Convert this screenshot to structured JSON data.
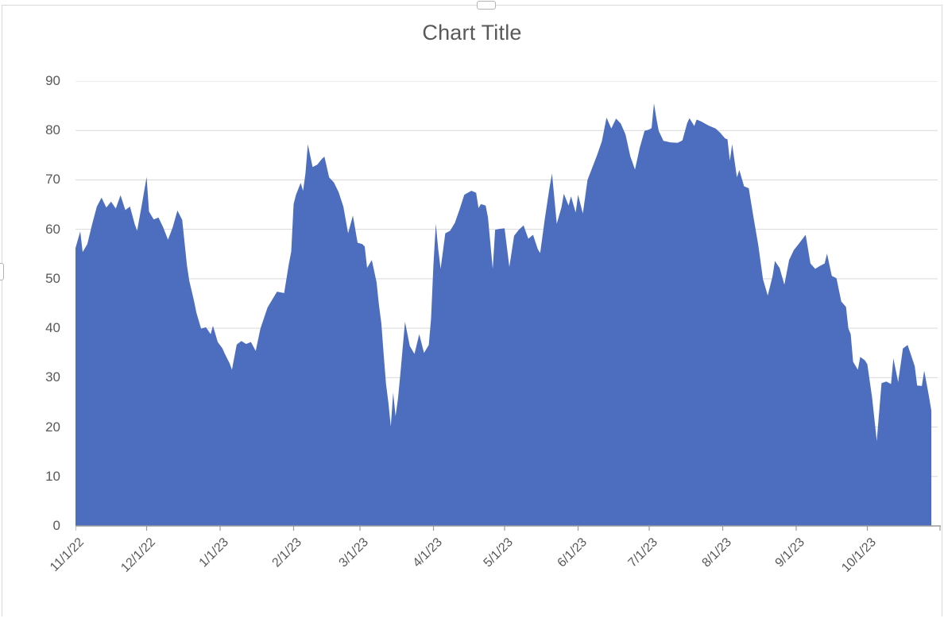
{
  "chart_frame": {
    "background": "#FFFFFF",
    "border_color": "#D9D9D9"
  },
  "chart_data": {
    "type": "area",
    "title": "Chart Title",
    "legend": "none",
    "grid": "horizontal",
    "series_color": "#4D6EBF",
    "grid_color": "#D9D9D9",
    "axis_line_color": "#9B9B9B",
    "text_color": "#595959",
    "ylim": [
      0,
      90
    ],
    "y_ticks": [
      90,
      80,
      70,
      60,
      50,
      40,
      30,
      20,
      10,
      0
    ],
    "x_axis": {
      "labels": [
        "11/1/22",
        "12/1/22",
        "1/1/23",
        "2/1/23",
        "3/1/23",
        "4/1/23",
        "5/1/23",
        "6/1/23",
        "7/1/23",
        "8/1/23",
        "9/1/23",
        "10/1/23"
      ],
      "tick_days": [
        0,
        30,
        61,
        92,
        120,
        151,
        181,
        212,
        242,
        273,
        304,
        334
      ],
      "end_tick_day": 365,
      "domain_days": [
        0,
        365
      ]
    },
    "points_day_value": [
      [
        0,
        56.2
      ],
      [
        2,
        59.6
      ],
      [
        3,
        55.4
      ],
      [
        5,
        57
      ],
      [
        7,
        61
      ],
      [
        9,
        64.6
      ],
      [
        11,
        66.4
      ],
      [
        13,
        64.4
      ],
      [
        15,
        65.6
      ],
      [
        17,
        64.2
      ],
      [
        19,
        66.9
      ],
      [
        21,
        63.9
      ],
      [
        23,
        64.6
      ],
      [
        25,
        61
      ],
      [
        26,
        59.7
      ],
      [
        28,
        65
      ],
      [
        30,
        70.6
      ],
      [
        31,
        63.6
      ],
      [
        33,
        62
      ],
      [
        35,
        62.4
      ],
      [
        37,
        60.4
      ],
      [
        39,
        57.9
      ],
      [
        41,
        60.4
      ],
      [
        43,
        63.8
      ],
      [
        45,
        61.9
      ],
      [
        47,
        52.8
      ],
      [
        48,
        49.6
      ],
      [
        50,
        45.5
      ],
      [
        51,
        43.1
      ],
      [
        53,
        39.9
      ],
      [
        55,
        40.2
      ],
      [
        57,
        38.8
      ],
      [
        58,
        40.5
      ],
      [
        60,
        37.2
      ],
      [
        62,
        35.9
      ],
      [
        63,
        34.8
      ],
      [
        65,
        32.9
      ],
      [
        66,
        31.6
      ],
      [
        68,
        36.7
      ],
      [
        70,
        37.4
      ],
      [
        72,
        36.8
      ],
      [
        74,
        37.2
      ],
      [
        76,
        35.4
      ],
      [
        78,
        39.9
      ],
      [
        81,
        44.2
      ],
      [
        85,
        47.4
      ],
      [
        88,
        47.1
      ],
      [
        89,
        50
      ],
      [
        90,
        53
      ],
      [
        91,
        55.5
      ],
      [
        92,
        65.1
      ],
      [
        93,
        67
      ],
      [
        95,
        69.4
      ],
      [
        96,
        67.8
      ],
      [
        97,
        71.3
      ],
      [
        98,
        77.2
      ],
      [
        100,
        72.6
      ],
      [
        102,
        73.1
      ],
      [
        104,
        74.3
      ],
      [
        105,
        74.7
      ],
      [
        107,
        70.5
      ],
      [
        109,
        69.5
      ],
      [
        111,
        67.5
      ],
      [
        113,
        64.6
      ],
      [
        115,
        59.2
      ],
      [
        117,
        62.8
      ],
      [
        119,
        57.3
      ],
      [
        121,
        57
      ],
      [
        122,
        56.5
      ],
      [
        123,
        52.2
      ],
      [
        125,
        53.8
      ],
      [
        127,
        49.3
      ],
      [
        128,
        44.7
      ],
      [
        129,
        41
      ],
      [
        130,
        34.6
      ],
      [
        131,
        28.7
      ],
      [
        132,
        24.9
      ],
      [
        133,
        20.1
      ],
      [
        134,
        27
      ],
      [
        135,
        22.2
      ],
      [
        136,
        25.7
      ],
      [
        137,
        30.5
      ],
      [
        139,
        41.3
      ],
      [
        141,
        36.4
      ],
      [
        143,
        34.8
      ],
      [
        145,
        38.8
      ],
      [
        147,
        35
      ],
      [
        149,
        36.6
      ],
      [
        150,
        42
      ],
      [
        151,
        53
      ],
      [
        152,
        61.1
      ],
      [
        153,
        56
      ],
      [
        154,
        52
      ],
      [
        156,
        59.2
      ],
      [
        158,
        59.7
      ],
      [
        160,
        61.3
      ],
      [
        162,
        64
      ],
      [
        164,
        67
      ],
      [
        167,
        67.8
      ],
      [
        169,
        67.4
      ],
      [
        170,
        64.3
      ],
      [
        171,
        65.1
      ],
      [
        173,
        64.8
      ],
      [
        174,
        62.4
      ],
      [
        176,
        52
      ],
      [
        177,
        59.9
      ],
      [
        179,
        60.1
      ],
      [
        181,
        60.2
      ],
      [
        183,
        52.4
      ],
      [
        185,
        58.7
      ],
      [
        187,
        59.9
      ],
      [
        189,
        60.8
      ],
      [
        191,
        58.1
      ],
      [
        193,
        58.9
      ],
      [
        195,
        56
      ],
      [
        196,
        55.2
      ],
      [
        198,
        62.2
      ],
      [
        200,
        68.6
      ],
      [
        201,
        71.3
      ],
      [
        203,
        61.1
      ],
      [
        205,
        64.5
      ],
      [
        206,
        67.2
      ],
      [
        208,
        64.8
      ],
      [
        209,
        66.7
      ],
      [
        211,
        63.4
      ],
      [
        212,
        67
      ],
      [
        214,
        63.2
      ],
      [
        216,
        70
      ],
      [
        218,
        72.5
      ],
      [
        220,
        75
      ],
      [
        222,
        77.8
      ],
      [
        224,
        82.6
      ],
      [
        226,
        80.4
      ],
      [
        228,
        82.4
      ],
      [
        230,
        81.4
      ],
      [
        232,
        79.2
      ],
      [
        234,
        74.8
      ],
      [
        236,
        72.1
      ],
      [
        238,
        76.5
      ],
      [
        240,
        79.9
      ],
      [
        242,
        80.2
      ],
      [
        243,
        80.5
      ],
      [
        244,
        85.5
      ],
      [
        245,
        82.5
      ],
      [
        246,
        79.9
      ],
      [
        248,
        77.9
      ],
      [
        251,
        77.6
      ],
      [
        254,
        77.5
      ],
      [
        256,
        78
      ],
      [
        258,
        81.5
      ],
      [
        259,
        82.5
      ],
      [
        261,
        80.9
      ],
      [
        262,
        82.2
      ],
      [
        264,
        81.8
      ],
      [
        267,
        81
      ],
      [
        270,
        80.4
      ],
      [
        272,
        79.5
      ],
      [
        274,
        78.4
      ],
      [
        275,
        78.2
      ],
      [
        276,
        73.9
      ],
      [
        277,
        77.2
      ],
      [
        279,
        70.5
      ],
      [
        280,
        72
      ],
      [
        282,
        68.7
      ],
      [
        284,
        68.3
      ],
      [
        286,
        62.4
      ],
      [
        288,
        56.8
      ],
      [
        290,
        49.9
      ],
      [
        292,
        46.6
      ],
      [
        294,
        50.5
      ],
      [
        295,
        53.6
      ],
      [
        297,
        52.2
      ],
      [
        299,
        48.8
      ],
      [
        301,
        53.8
      ],
      [
        303,
        55.8
      ],
      [
        305,
        57
      ],
      [
        307,
        58.3
      ],
      [
        308,
        58.9
      ],
      [
        310,
        53.1
      ],
      [
        312,
        52
      ],
      [
        314,
        52.6
      ],
      [
        316,
        53.1
      ],
      [
        317,
        55.1
      ],
      [
        319,
        50.6
      ],
      [
        321,
        50.1
      ],
      [
        323,
        45.4
      ],
      [
        325,
        44.3
      ],
      [
        326,
        40
      ],
      [
        327,
        38.8
      ],
      [
        328,
        33.2
      ],
      [
        330,
        31.6
      ],
      [
        331,
        34.2
      ],
      [
        333,
        33.5
      ],
      [
        334,
        32.7
      ],
      [
        336,
        26
      ],
      [
        338,
        17.2
      ],
      [
        340,
        28.9
      ],
      [
        342,
        29.2
      ],
      [
        344,
        28.7
      ],
      [
        345,
        33.9
      ],
      [
        347,
        29.1
      ],
      [
        349,
        35.9
      ],
      [
        351,
        36.6
      ],
      [
        352,
        35.2
      ],
      [
        354,
        32.3
      ],
      [
        355,
        28.4
      ],
      [
        357,
        28.3
      ],
      [
        358,
        31.4
      ],
      [
        360,
        26.2
      ],
      [
        361,
        23.3
      ]
    ]
  }
}
